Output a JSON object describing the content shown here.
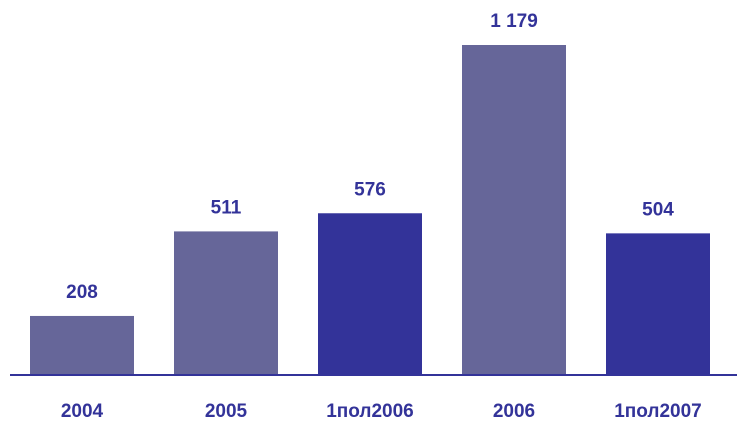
{
  "chart_data": {
    "type": "bar",
    "categories": [
      "2004",
      "2005",
      "1пол2006",
      "2006",
      "1пол2007"
    ],
    "values": [
      208,
      511,
      576,
      1179,
      504
    ],
    "value_labels": [
      "208",
      "511",
      "576",
      "1 179",
      "504"
    ],
    "colors": [
      "#666699",
      "#666699",
      "#333399",
      "#666699",
      "#333399"
    ]
  }
}
